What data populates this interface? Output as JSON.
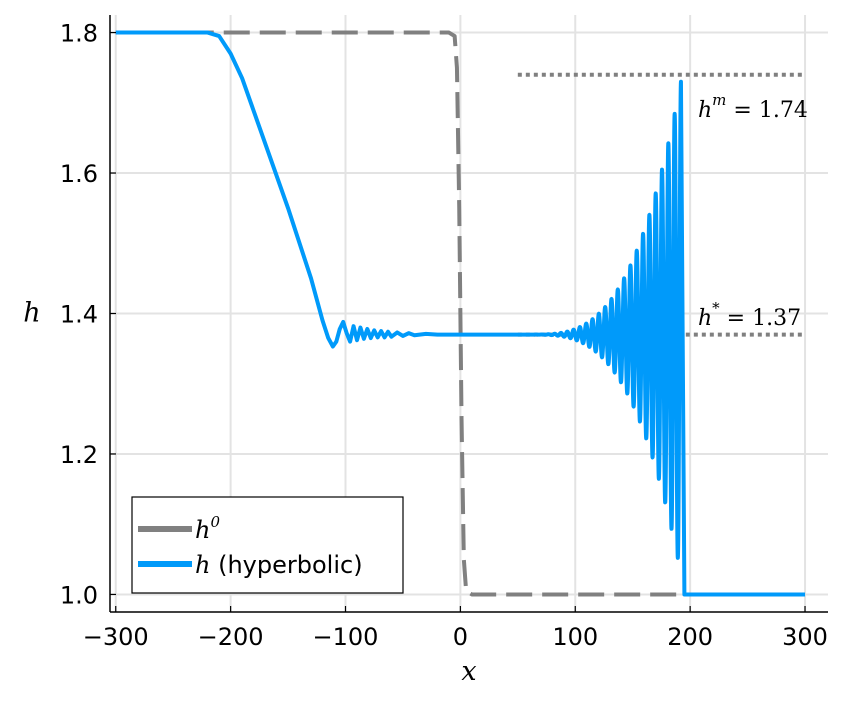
{
  "chart_data": {
    "type": "line",
    "title": "",
    "xlabel": "x",
    "ylabel": "h",
    "xlim": [
      -305,
      320
    ],
    "ylim": [
      0.975,
      1.825
    ],
    "xticks": [
      -300,
      -200,
      -100,
      0,
      100,
      200,
      300
    ],
    "xtick_labels": [
      "−300",
      "−200",
      "−100",
      "0",
      "100",
      "200",
      "300"
    ],
    "yticks": [
      1.0,
      1.2,
      1.4,
      1.6,
      1.8
    ],
    "ytick_labels": [
      "1.0",
      "1.2",
      "1.4",
      "1.6",
      "1.8"
    ],
    "grid": true,
    "legend_position": "bottom-left",
    "series": [
      {
        "name": "h^0",
        "legend_base": "h",
        "legend_sup": "0",
        "legend_suffix": "",
        "color": "#808080",
        "style": "dashed",
        "x": [
          -300,
          -200,
          -100,
          -10,
          -5,
          -3,
          -1,
          0,
          1,
          3,
          5,
          10,
          100,
          200,
          300
        ],
        "y": [
          1.8,
          1.8,
          1.8,
          1.8,
          1.795,
          1.75,
          1.55,
          1.4,
          1.25,
          1.05,
          1.005,
          1.0,
          1.0,
          1.0,
          1.0
        ]
      },
      {
        "name": "h (hyperbolic)",
        "legend_base": "h",
        "legend_sup": "",
        "legend_suffix": " (hyperbolic)",
        "color": "#009AFA",
        "style": "solid",
        "x": [
          -300,
          -220,
          -210,
          -200,
          -190,
          -150,
          -130,
          -120,
          -115,
          -111,
          -108,
          -105,
          -102,
          -99,
          -96,
          -93,
          -90,
          -87,
          -84,
          -81,
          -78,
          -75,
          -72,
          -69,
          -66,
          -63,
          -60,
          -55,
          -50,
          -45,
          -40,
          -30,
          -20,
          -10,
          0,
          10,
          30,
          50,
          60,
          70,
          80,
          90,
          95,
          100,
          105,
          110,
          115,
          120,
          125,
          130,
          135,
          140,
          145,
          150,
          155,
          160,
          165,
          170,
          175,
          180,
          185,
          188,
          190,
          192,
          195,
          200,
          250,
          300
        ],
        "y": [
          1.8,
          1.8,
          1.795,
          1.77,
          1.735,
          1.55,
          1.45,
          1.39,
          1.365,
          1.353,
          1.36,
          1.378,
          1.388,
          1.372,
          1.36,
          1.382,
          1.362,
          1.38,
          1.364,
          1.378,
          1.365,
          1.376,
          1.366,
          1.375,
          1.366,
          1.374,
          1.367,
          1.373,
          1.368,
          1.372,
          1.369,
          1.371,
          1.37,
          1.37,
          1.37,
          1.37,
          1.37,
          1.37,
          1.37,
          1.37,
          1.37,
          1.37,
          1.37,
          1.37,
          1.37,
          1.37,
          1.37,
          1.37,
          1.37,
          1.37,
          1.37,
          1.37,
          1.37,
          1.37,
          1.37,
          1.37,
          1.37,
          1.37,
          1.37,
          1.37,
          1.37,
          1.37,
          1.37,
          1.37,
          1.0,
          1.0,
          1.0,
          1.0
        ],
        "oscillation": {
          "x_start": 60,
          "x_end": 192,
          "wavelength": 5.5,
          "mean": 1.37,
          "peak_at_end": 0.36,
          "trough_at_end": 0.34,
          "growth": 3.2
        }
      }
    ],
    "reference_lines": [
      {
        "y": 1.74,
        "x_from": 50,
        "x_to": 300,
        "label_base": "h",
        "label_sup": "m",
        "label_value": " = 1.74"
      },
      {
        "y": 1.37,
        "x_from": 50,
        "x_to": 300,
        "label_base": "h",
        "label_sup": "*",
        "label_value": " = 1.37"
      }
    ]
  }
}
